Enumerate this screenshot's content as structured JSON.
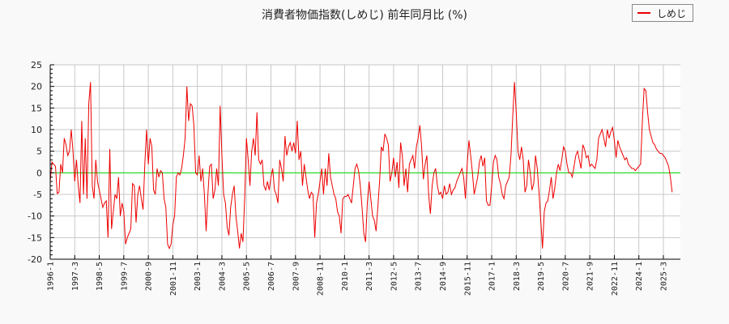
{
  "chart_data": {
    "type": "line",
    "title": "消費者物価指数(しめじ) 前年同月比 (%)",
    "xlabel": "",
    "ylabel": "",
    "ylim": [
      -20,
      25
    ],
    "yticks": [
      25,
      20,
      15,
      10,
      5,
      0,
      -5,
      -10,
      -15,
      -20
    ],
    "xticks": [
      "1996-1",
      "1997-3",
      "1998-5",
      "1999-7",
      "2000-9",
      "2001-11",
      "2003-1",
      "2004-3",
      "2005-5",
      "2006-7",
      "2007-9",
      "2008-11",
      "2010-1",
      "2011-3",
      "2012-5",
      "2013-7",
      "2014-9",
      "2015-11",
      "2017-1",
      "2018-3",
      "2019-5",
      "2020-7",
      "2021-9",
      "2022-11",
      "2024-1",
      "2025-3"
    ],
    "grid": true,
    "legend_position": "top-right",
    "x_start": "1996-1",
    "x_end": "2025-12",
    "series": [
      {
        "name": "しめじ",
        "color": "#ee0000",
        "values": [
          -2.0,
          2.5,
          2.0,
          1.5,
          -4.8,
          -4.5,
          2.0,
          0.0,
          8.0,
          6.5,
          4.0,
          5.0,
          10.0,
          5.0,
          -2.0,
          3.0,
          -3.0,
          -7.0,
          12.0,
          -5.0,
          8.0,
          -6.0,
          16.0,
          21.0,
          -3.0,
          -6.0,
          3.0,
          -2.0,
          -4.0,
          -6.0,
          -8.0,
          -7.0,
          -6.5,
          -15.0,
          5.5,
          -13.0,
          -9.0,
          -5.0,
          -6.0,
          -1.0,
          -10.0,
          -7.0,
          -9.0,
          -16.5,
          -15.0,
          -14.0,
          -13.0,
          -2.5,
          -3.0,
          -11.5,
          -5.0,
          -3.0,
          -6.0,
          -8.5,
          2.0,
          10.0,
          2.0,
          8.0,
          6.0,
          -4.0,
          -5.0,
          1.0,
          -1.0,
          0.5,
          0.0,
          -6.0,
          -8.0,
          -16.5,
          -17.5,
          -16.5,
          -12.0,
          -10.0,
          -1.0,
          0.0,
          -0.5,
          1.0,
          4.0,
          8.0,
          20.0,
          12.0,
          16.0,
          15.5,
          11.0,
          0.0,
          -0.5,
          4.0,
          -2.0,
          1.0,
          -5.0,
          -13.5,
          -5.0,
          1.5,
          2.0,
          -6.0,
          -4.0,
          1.0,
          -3.0,
          15.5,
          4.0,
          -5.0,
          -7.0,
          -12.5,
          -14.5,
          -8.0,
          -5.0,
          -3.0,
          -10.0,
          -13.5,
          -17.5,
          -14.0,
          -16.0,
          -6.0,
          8.0,
          3.0,
          -3.0,
          5.0,
          8.0,
          4.0,
          14.0,
          3.0,
          2.0,
          3.0,
          -3.0,
          -4.0,
          -2.0,
          -4.0,
          -1.0,
          1.0,
          -4.0,
          -5.0,
          -7.0,
          3.0,
          1.0,
          -2.0,
          8.5,
          4.0,
          6.0,
          7.0,
          5.0,
          7.0,
          4.5,
          12.0,
          3.0,
          5.0,
          -3.0,
          2.0,
          -1.0,
          -4.0,
          -6.0,
          -4.5,
          -5.0,
          -15.0,
          -7.0,
          -5.0,
          -2.0,
          1.0,
          -5.0,
          1.0,
          -3.0,
          4.5,
          -1.0,
          -3.0,
          -5.0,
          -6.0,
          -9.0,
          -10.0,
          -14.0,
          -6.0,
          -5.5,
          -5.5,
          -5.0,
          -6.0,
          -7.0,
          -3.0,
          1.0,
          2.0,
          0.5,
          -3.0,
          -8.0,
          -14.0,
          -16.0,
          -7.0,
          -2.0,
          -6.0,
          -10.0,
          -11.0,
          -13.5,
          -8.0,
          -2.0,
          6.0,
          5.0,
          9.0,
          8.0,
          6.5,
          -2.0,
          0.0,
          3.5,
          -1.0,
          2.5,
          -3.5,
          7.0,
          4.0,
          -3.0,
          1.0,
          -4.5,
          2.0,
          3.0,
          4.0,
          1.0,
          6.0,
          8.0,
          11.0,
          6.0,
          -1.5,
          2.0,
          4.0,
          -5.0,
          -9.5,
          -3.0,
          0.0,
          1.0,
          -3.0,
          -5.0,
          -4.5,
          -6.0,
          -3.0,
          -5.0,
          -4.5,
          -2.5,
          -5.0,
          -4.0,
          -3.5,
          -2.0,
          -1.0,
          0.0,
          1.0,
          -1.0,
          -6.0,
          2.0,
          7.5,
          4.0,
          0.0,
          -5.0,
          -3.0,
          -1.0,
          2.5,
          4.0,
          1.5,
          3.5,
          -6.5,
          -7.5,
          -7.5,
          -3.0,
          2.5,
          4.0,
          3.0,
          -1.0,
          -2.5,
          -5.0,
          -6.0,
          -3.0,
          -2.0,
          -1.0,
          4.0,
          13.0,
          21.0,
          14.0,
          5.0,
          3.0,
          6.0,
          3.0,
          -4.5,
          -3.0,
          3.0,
          0.0,
          -4.0,
          -2.5,
          4.0,
          1.0,
          -4.5,
          -11.0,
          -17.5,
          -9.0,
          -7.0,
          -6.5,
          -4.0,
          -1.0,
          -6.0,
          -3.5,
          0.0,
          2.0,
          0.5,
          3.0,
          6.0,
          5.0,
          2.0,
          0.0,
          0.0,
          -1.0,
          1.5,
          4.0,
          5.0,
          3.0,
          1.0,
          6.5,
          5.5,
          3.5,
          4.0,
          1.5,
          2.0,
          1.5,
          1.0,
          3.0,
          8.0,
          9.0,
          10.0,
          8.0,
          6.0,
          10.0,
          8.0,
          9.5,
          10.5,
          7.5,
          3.5,
          7.5,
          6.0,
          5.0,
          4.0,
          3.0,
          3.5,
          2.0,
          1.5,
          1.0,
          1.0,
          0.5,
          1.0,
          1.5,
          2.0,
          12.0,
          19.5,
          19.0,
          14.0,
          10.0,
          8.5,
          7.0,
          6.5,
          5.5,
          5.0,
          4.5,
          4.5,
          4.0,
          3.5,
          2.5,
          1.5,
          -1.0,
          -4.5
        ]
      }
    ],
    "zero_line_color": "#00dd00"
  },
  "legend": {
    "items": [
      {
        "label": "しめじ",
        "color": "#ee0000"
      }
    ]
  }
}
